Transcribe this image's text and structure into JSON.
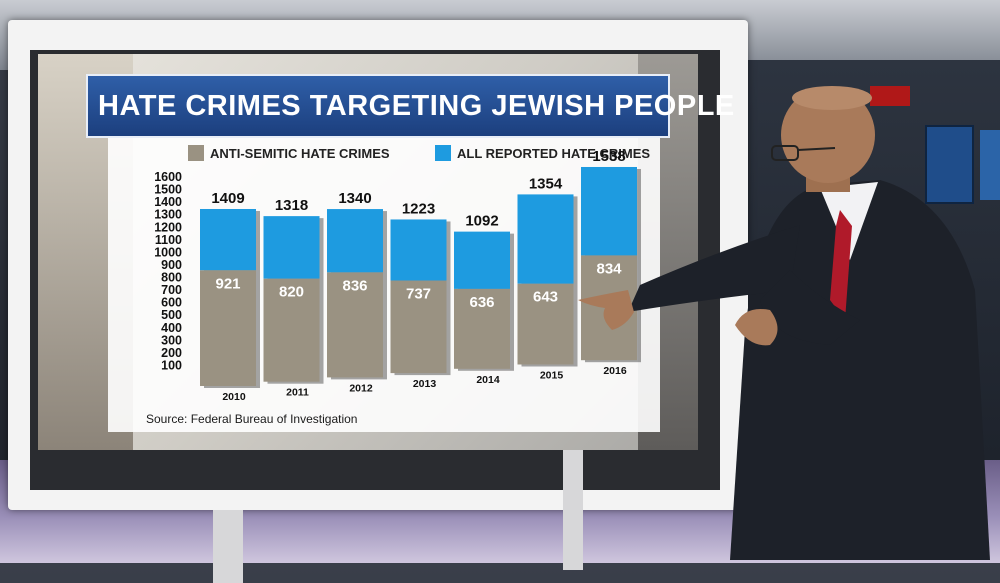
{
  "chart_data": {
    "type": "bar",
    "title": "HATE CRIMES TARGETING JEWISH PEOPLE",
    "categories": [
      "2010",
      "2011",
      "2012",
      "2013",
      "2014",
      "2015",
      "2016"
    ],
    "series": [
      {
        "name": "ANTI-SEMITIC HATE CRIMES",
        "values": [
          921,
          820,
          836,
          737,
          636,
          643,
          834
        ],
        "color": "#9a9282"
      },
      {
        "name": "ALL REPORTED HATE CRIMES",
        "values": [
          1409,
          1318,
          1340,
          1223,
          1092,
          1354,
          1538
        ],
        "color": "#1e9be0"
      }
    ],
    "yticks": [
      "100",
      "200",
      "300",
      "400",
      "500",
      "600",
      "700",
      "800",
      "900",
      "1000",
      "1100",
      "1200",
      "1300",
      "1400",
      "1500",
      "1600"
    ],
    "ylim": [
      0,
      1600
    ],
    "grid": false,
    "legend": "top",
    "source": "Source: Federal Bureau of Investigation"
  }
}
